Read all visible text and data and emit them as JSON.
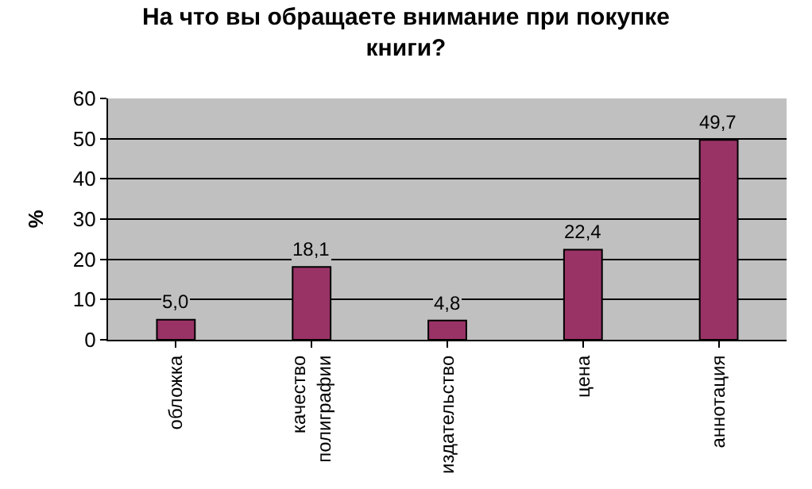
{
  "chart_data": {
    "type": "bar",
    "title": "На что вы обращаете внимание при покупке\nкниги?",
    "ylabel": "%",
    "categories": [
      "обложка",
      "качество\nполиграфии",
      "издательство",
      "цена",
      "аннотация"
    ],
    "values": [
      5.0,
      18.1,
      4.8,
      22.4,
      49.7
    ],
    "value_labels": [
      "5,0",
      "18,1",
      "4,8",
      "22,4",
      "49,7"
    ],
    "color": "#993366",
    "ylim": [
      0,
      60
    ],
    "yticks": [
      0,
      10,
      20,
      30,
      40,
      50,
      60
    ],
    "grid": "y",
    "legend": false
  }
}
